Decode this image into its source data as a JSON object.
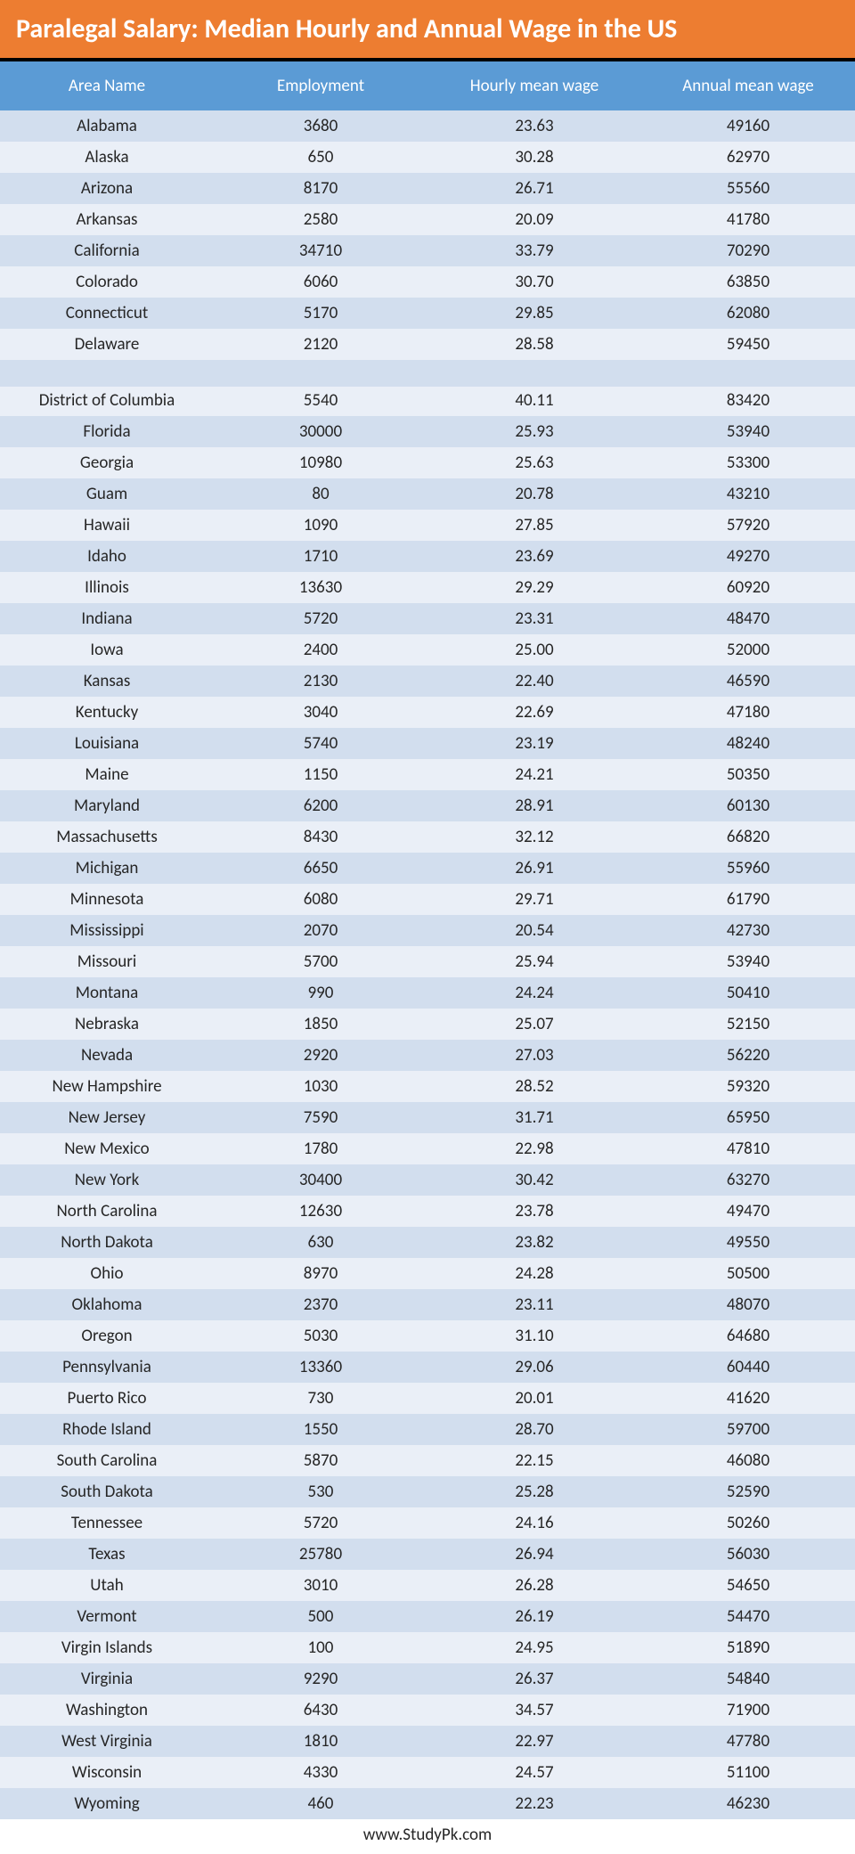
{
  "title": "Paralegal Salary: Median Hourly and Annual Wage in the US",
  "columns": [
    "Area Name",
    "Employment",
    "Hourly mean wage",
    "Annual mean wage"
  ],
  "rows": [
    {
      "area": "Alabama",
      "emp": "3680",
      "hourly": "23.63",
      "annual": "49160"
    },
    {
      "area": "Alaska",
      "emp": "650",
      "hourly": "30.28",
      "annual": "62970"
    },
    {
      "area": "Arizona",
      "emp": "8170",
      "hourly": "26.71",
      "annual": "55560"
    },
    {
      "area": "Arkansas",
      "emp": "2580",
      "hourly": "20.09",
      "annual": "41780"
    },
    {
      "area": "California",
      "emp": "34710",
      "hourly": "33.79",
      "annual": "70290"
    },
    {
      "area": "Colorado",
      "emp": "6060",
      "hourly": "30.70",
      "annual": "63850"
    },
    {
      "area": "Connecticut",
      "emp": "5170",
      "hourly": "29.85",
      "annual": "62080"
    },
    {
      "area": "Delaware",
      "emp": "2120",
      "hourly": "28.58",
      "annual": "59450"
    },
    {
      "blank": true
    },
    {
      "area": "District of Columbia",
      "emp": "5540",
      "hourly": "40.11",
      "annual": "83420",
      "dc": true
    },
    {
      "area": "Florida",
      "emp": "30000",
      "hourly": "25.93",
      "annual": "53940"
    },
    {
      "area": "Georgia",
      "emp": "10980",
      "hourly": "25.63",
      "annual": "53300"
    },
    {
      "area": "Guam",
      "emp": "80",
      "hourly": "20.78",
      "annual": "43210"
    },
    {
      "area": "Hawaii",
      "emp": "1090",
      "hourly": "27.85",
      "annual": "57920"
    },
    {
      "area": "Idaho",
      "emp": "1710",
      "hourly": "23.69",
      "annual": "49270"
    },
    {
      "area": "Illinois",
      "emp": "13630",
      "hourly": "29.29",
      "annual": "60920"
    },
    {
      "area": "Indiana",
      "emp": "5720",
      "hourly": "23.31",
      "annual": "48470"
    },
    {
      "area": "Iowa",
      "emp": "2400",
      "hourly": "25.00",
      "annual": "52000"
    },
    {
      "area": "Kansas",
      "emp": "2130",
      "hourly": "22.40",
      "annual": "46590"
    },
    {
      "area": "Kentucky",
      "emp": "3040",
      "hourly": "22.69",
      "annual": "47180"
    },
    {
      "area": "Louisiana",
      "emp": "5740",
      "hourly": "23.19",
      "annual": "48240"
    },
    {
      "area": "Maine",
      "emp": "1150",
      "hourly": "24.21",
      "annual": "50350"
    },
    {
      "area": "Maryland",
      "emp": "6200",
      "hourly": "28.91",
      "annual": "60130"
    },
    {
      "area": "Massachusetts",
      "emp": "8430",
      "hourly": "32.12",
      "annual": "66820"
    },
    {
      "area": "Michigan",
      "emp": "6650",
      "hourly": "26.91",
      "annual": "55960"
    },
    {
      "area": "Minnesota",
      "emp": "6080",
      "hourly": "29.71",
      "annual": "61790"
    },
    {
      "area": "Mississippi",
      "emp": "2070",
      "hourly": "20.54",
      "annual": "42730"
    },
    {
      "area": "Missouri",
      "emp": "5700",
      "hourly": "25.94",
      "annual": "53940"
    },
    {
      "area": "Montana",
      "emp": "990",
      "hourly": "24.24",
      "annual": "50410"
    },
    {
      "area": "Nebraska",
      "emp": "1850",
      "hourly": "25.07",
      "annual": "52150"
    },
    {
      "area": "Nevada",
      "emp": "2920",
      "hourly": "27.03",
      "annual": "56220"
    },
    {
      "area": "New Hampshire",
      "emp": "1030",
      "hourly": "28.52",
      "annual": "59320"
    },
    {
      "area": "New Jersey",
      "emp": "7590",
      "hourly": "31.71",
      "annual": "65950"
    },
    {
      "area": "New Mexico",
      "emp": "1780",
      "hourly": "22.98",
      "annual": "47810"
    },
    {
      "area": "New York",
      "emp": "30400",
      "hourly": "30.42",
      "annual": "63270"
    },
    {
      "area": "North Carolina",
      "emp": "12630",
      "hourly": "23.78",
      "annual": "49470"
    },
    {
      "area": "North Dakota",
      "emp": "630",
      "hourly": "23.82",
      "annual": "49550"
    },
    {
      "area": "Ohio",
      "emp": "8970",
      "hourly": "24.28",
      "annual": "50500"
    },
    {
      "area": "Oklahoma",
      "emp": "2370",
      "hourly": "23.11",
      "annual": "48070"
    },
    {
      "area": "Oregon",
      "emp": "5030",
      "hourly": "31.10",
      "annual": "64680"
    },
    {
      "area": "Pennsylvania",
      "emp": "13360",
      "hourly": "29.06",
      "annual": "60440"
    },
    {
      "area": "Puerto Rico",
      "emp": "730",
      "hourly": "20.01",
      "annual": "41620"
    },
    {
      "area": "Rhode Island",
      "emp": "1550",
      "hourly": "28.70",
      "annual": "59700"
    },
    {
      "area": "South Carolina",
      "emp": "5870",
      "hourly": "22.15",
      "annual": "46080"
    },
    {
      "area": "South Dakota",
      "emp": "530",
      "hourly": "25.28",
      "annual": "52590"
    },
    {
      "area": "Tennessee",
      "emp": "5720",
      "hourly": "24.16",
      "annual": "50260"
    },
    {
      "area": "Texas",
      "emp": "25780",
      "hourly": "26.94",
      "annual": "56030"
    },
    {
      "area": "Utah",
      "emp": "3010",
      "hourly": "26.28",
      "annual": "54650"
    },
    {
      "area": "Vermont",
      "emp": "500",
      "hourly": "26.19",
      "annual": "54470"
    },
    {
      "area": "Virgin Islands",
      "emp": "100",
      "hourly": "24.95",
      "annual": "51890"
    },
    {
      "area": "Virginia",
      "emp": "9290",
      "hourly": "26.37",
      "annual": "54840"
    },
    {
      "area": "Washington",
      "emp": "6430",
      "hourly": "34.57",
      "annual": "71900"
    },
    {
      "area": "West Virginia",
      "emp": "1810",
      "hourly": "22.97",
      "annual": "47780"
    },
    {
      "area": "Wisconsin",
      "emp": "4330",
      "hourly": "24.57",
      "annual": "51100"
    },
    {
      "area": "Wyoming",
      "emp": "460",
      "hourly": "22.23",
      "annual": "46230"
    }
  ],
  "footer": "www.StudyPk.com",
  "colors": {
    "title_bg": "#ed7d31",
    "title_border": "#000000",
    "header_bg": "#5b9bd5",
    "row_odd": "#d2deee",
    "row_even": "#eaeff7",
    "text": "#262626",
    "title_text": "#ffffff"
  }
}
